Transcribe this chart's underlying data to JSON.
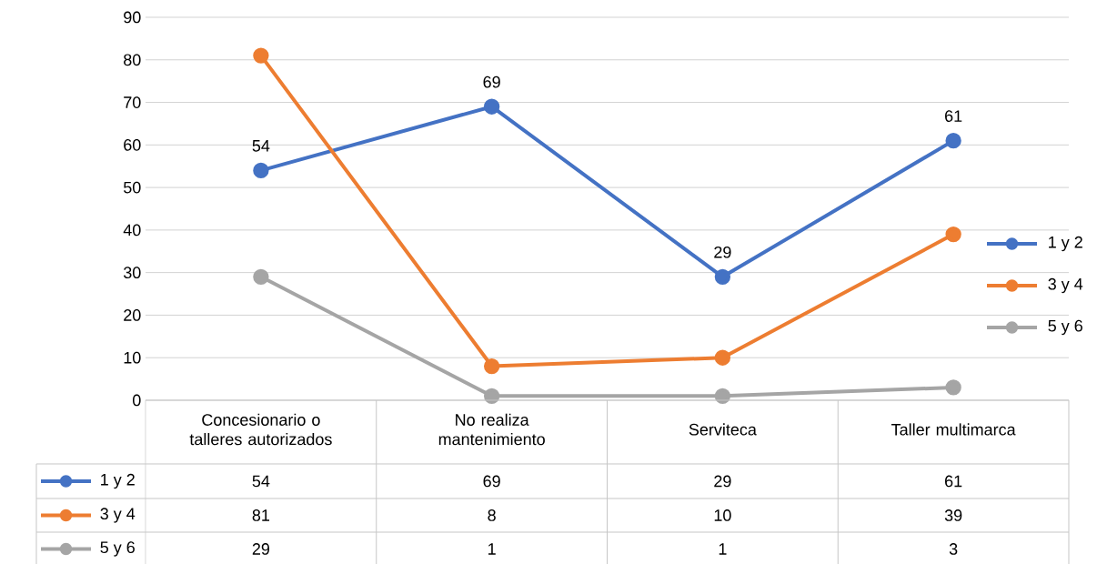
{
  "chart_data": {
    "type": "line",
    "categories": [
      "Concesionario o talleres autorizados",
      "No realiza mantenimiento",
      "Serviteca",
      "Taller multimarca"
    ],
    "series": [
      {
        "name": "1 y 2",
        "color": "#4472c4",
        "values": [
          54,
          69,
          29,
          61
        ],
        "value_labels": [
          "54",
          "69",
          "29",
          "61"
        ]
      },
      {
        "name": "3 y 4",
        "color": "#ed7d31",
        "values": [
          81,
          8,
          10,
          39
        ]
      },
      {
        "name": "5 y 6",
        "color": "#a5a5a5",
        "values": [
          29,
          1,
          1,
          3
        ]
      }
    ],
    "ylim": [
      0,
      90
    ],
    "yticks": [
      0,
      10,
      20,
      30,
      40,
      50,
      60,
      70,
      80,
      90
    ],
    "grid": "y",
    "legend": "right",
    "marker": "circle",
    "data_labels": true
  }
}
